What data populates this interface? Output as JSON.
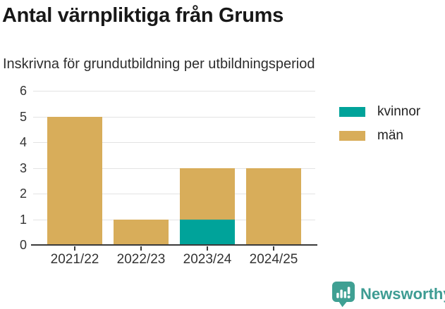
{
  "header": {
    "title": "Antal värnpliktiga från Grums",
    "subtitle": "Inskrivna för grundutbildning per utbildningsperiod"
  },
  "legend": {
    "items": [
      {
        "label": "kvinnor",
        "color": "#00a39a"
      },
      {
        "label": "män",
        "color": "#d8ad5a"
      }
    ]
  },
  "footer": {
    "brand": "Newsworthy",
    "logo_color": "#3fa093",
    "text_color": "#3e9c93"
  },
  "colors": {
    "kvinnor": "#00a39a",
    "man": "#d8ad5a",
    "axis": "#3a3a3a",
    "grid": "#e3e3e3",
    "title_text": "#181818",
    "tick_text": "#333333"
  },
  "chart_data": {
    "type": "bar",
    "stacked": true,
    "title": "Antal värnpliktiga från Grums",
    "subtitle": "Inskrivna för grundutbildning per utbildningsperiod",
    "categories": [
      "2021/22",
      "2022/23",
      "2023/24",
      "2024/25"
    ],
    "series": [
      {
        "name": "kvinnor",
        "color": "#00a39a",
        "values": [
          0,
          0,
          1,
          0
        ]
      },
      {
        "name": "män",
        "color": "#d8ad5a",
        "values": [
          5,
          1,
          2,
          3
        ]
      }
    ],
    "totals": [
      5,
      1,
      3,
      3
    ],
    "xlabel": "",
    "ylabel": "",
    "ylim": [
      0,
      6
    ],
    "yticks": [
      0,
      1,
      2,
      3,
      4,
      5,
      6
    ],
    "grid": true,
    "legend_position": "top-right"
  }
}
